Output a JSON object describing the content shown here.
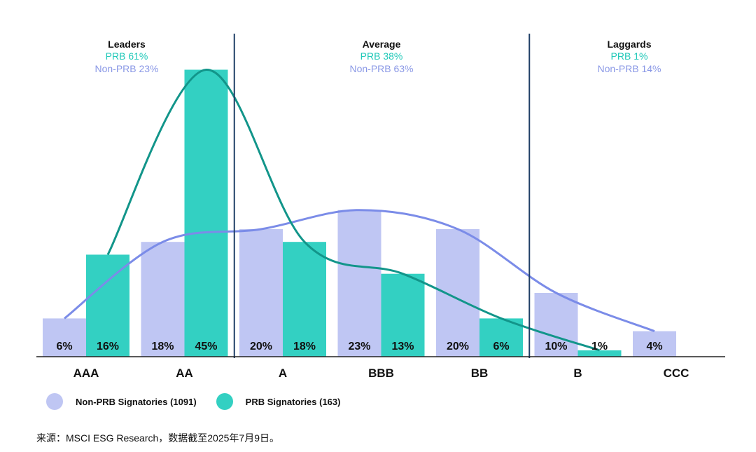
{
  "colors": {
    "non_prb_bar": "#bfc6f3",
    "prb_bar": "#33d0c2",
    "non_prb_curve": "#7b8ce8",
    "prb_curve": "#12958a",
    "divider": "#1f3f66",
    "axis": "#222222",
    "prb_text": "#1fc8b8",
    "non_prb_text": "#8a98e6"
  },
  "chart_data": {
    "type": "bar",
    "categories": [
      "AAA",
      "AA",
      "A",
      "BBB",
      "BB",
      "B",
      "CCC"
    ],
    "series": [
      {
        "name": "Non-PRB Signatories (1091)",
        "values": [
          6,
          18,
          20,
          23,
          20,
          10,
          4
        ],
        "labels": [
          "6%",
          "18%",
          "20%",
          "23%",
          "20%",
          "10%",
          "4%"
        ]
      },
      {
        "name": "PRB Signatories (163)",
        "values": [
          16,
          45,
          18,
          13,
          6,
          1,
          null
        ],
        "labels": [
          "16%",
          "45%",
          "18%",
          "13%",
          "6%",
          "1%",
          ""
        ]
      }
    ],
    "ylim": [
      0,
      45
    ],
    "groups": [
      {
        "title": "Leaders",
        "prb": "PRB 61%",
        "non_prb": "Non-PRB 23%"
      },
      {
        "title": "Average",
        "prb": "PRB 38%",
        "non_prb": "Non-PRB 63%"
      },
      {
        "title": "Laggards",
        "prb": "PRB 1%",
        "non_prb": "Non-PRB 14%"
      }
    ]
  },
  "legend": {
    "non_prb_label": "Non-PRB Signatories (1091)",
    "prb_label": "PRB Signatories (163)"
  },
  "source": "来源：MSCI ESG Research，数据截至2025年7月9日。"
}
